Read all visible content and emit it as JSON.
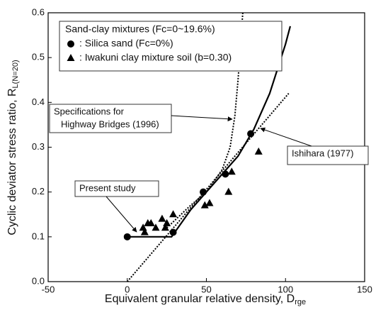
{
  "chart_data": {
    "type": "scatter",
    "xlabel": "Equivalent granular relative density, D",
    "xlabel_sub": "rge",
    "ylabel": "Cyclic deviator stress ratio, R",
    "ylabel_sub": "L(N=20)",
    "xlim": [
      -50,
      150
    ],
    "xticks": [
      -50,
      0,
      50,
      100,
      150
    ],
    "ylim": [
      0,
      0.6
    ],
    "yticks": [
      {
        "value": 0,
        "label": "0.0"
      },
      0.1,
      0.2,
      0.3,
      0.4,
      0.5,
      0.6
    ],
    "legend_title": "Sand-clay mixtures (Fc=0~19.6%)",
    "series": [
      {
        "name": ": Silica sand (Fc=0%)",
        "type": "scatter",
        "marker": "circle",
        "color": "#000000",
        "x": [
          0,
          29,
          48,
          62,
          78
        ],
        "values": [
          0.1,
          0.11,
          0.2,
          0.24,
          0.33
        ]
      },
      {
        "name": ": Iwakuni clay mixture soil (b=0.30)",
        "type": "scatter",
        "marker": "triangle",
        "color": "#000000",
        "x": [
          10,
          11,
          13,
          15,
          18,
          22,
          24,
          25,
          29,
          49,
          52,
          64,
          66,
          83
        ],
        "values": [
          0.12,
          0.11,
          0.13,
          0.13,
          0.12,
          0.14,
          0.12,
          0.13,
          0.15,
          0.17,
          0.175,
          0.2,
          0.245,
          0.29
        ]
      },
      {
        "name": [
          "Present study"
        ],
        "type": "line",
        "dash": false,
        "color": "#000000",
        "x": [
          0,
          28,
          40,
          50,
          60,
          70,
          80,
          90,
          100,
          103
        ],
        "values": [
          0.1,
          0.1,
          0.16,
          0.2,
          0.24,
          0.28,
          0.34,
          0.42,
          0.53,
          0.57
        ]
      },
      {
        "name": [
          "Ishihara (1977)"
        ],
        "type": "line",
        "dash": true,
        "color": "#000000",
        "x": [
          0,
          102
        ],
        "values": [
          0,
          0.42
        ]
      },
      {
        "name": [
          "Specifications for",
          "Highway Bridges (1996)"
        ],
        "type": "line",
        "dash": true,
        "color": "#000000",
        "x": [
          25,
          40,
          50,
          60,
          65,
          68,
          70,
          72,
          73
        ],
        "values": [
          0.12,
          0.17,
          0.2,
          0.25,
          0.3,
          0.37,
          0.45,
          0.55,
          0.6
        ]
      }
    ]
  }
}
